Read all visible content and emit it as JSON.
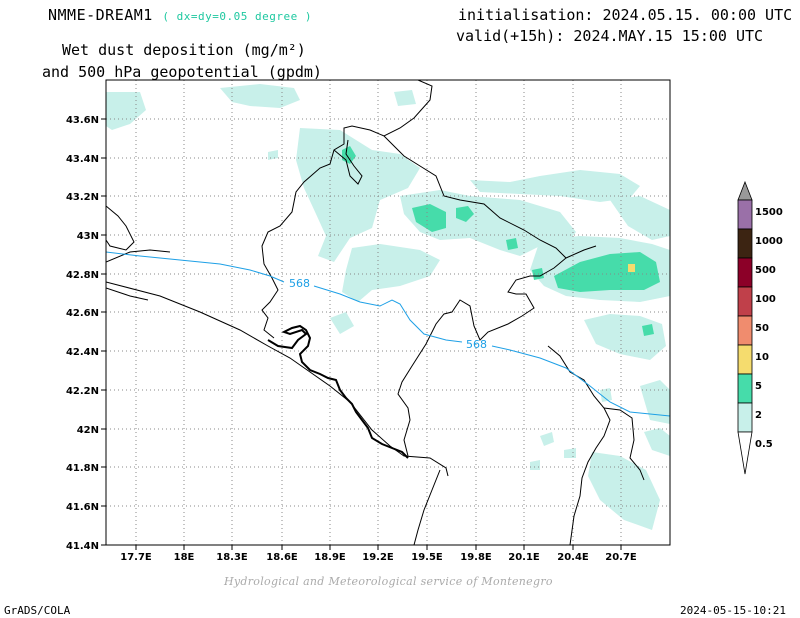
{
  "header": {
    "model": "NMME-DREAM1",
    "resolution": "( dx=dy=0.05 degree )",
    "field_line1": "Wet dust deposition (mg/m²)",
    "field_line2": "and 500 hPa geopotential (gpdm)",
    "init": "initialisation: 2024.05.15. 00:00 UTC",
    "valid": "valid(+15h): 2024.MAY.15 15:00 UTC"
  },
  "footer": {
    "credit": "Hydrological and Meteorological service of Montenegro",
    "software": "GrADS/COLA",
    "timestamp": "2024-05-15-10:21"
  },
  "map": {
    "lon_ticks": [
      "17.7E",
      "18E",
      "18.3E",
      "18.6E",
      "18.9E",
      "19.2E",
      "19.5E",
      "19.8E",
      "20.1E",
      "20.4E",
      "20.7E"
    ],
    "lat_ticks": [
      "43.6N",
      "43.4N",
      "43.2N",
      "43N",
      "42.8N",
      "42.6N",
      "42.4N",
      "42.2N",
      "42N",
      "41.8N",
      "41.6N",
      "41.4N"
    ],
    "contour_labels": [
      "568",
      "568"
    ]
  },
  "legend": {
    "levels": [
      {
        "label": "1500",
        "color": "#9a70a8"
      },
      {
        "label": "1000",
        "color": "#3c2412"
      },
      {
        "label": "500",
        "color": "#8c0028"
      },
      {
        "label": "100",
        "color": "#c0404a"
      },
      {
        "label": "50",
        "color": "#f08c6e"
      },
      {
        "label": "10",
        "color": "#f5dc6e"
      },
      {
        "label": "5",
        "color": "#46dcaa"
      },
      {
        "label": "2",
        "color": "#c8f0ea"
      },
      {
        "label": "0.5",
        "color": "#ffffff"
      }
    ],
    "top_arrow_color": "#999999"
  },
  "colors": {
    "dust_light": "#c8f0ea",
    "dust_mid": "#46dcaa",
    "dust_peak": "#f5dc6e",
    "contour": "#1ea0e6",
    "border": "#000000",
    "grid": "#888888"
  }
}
